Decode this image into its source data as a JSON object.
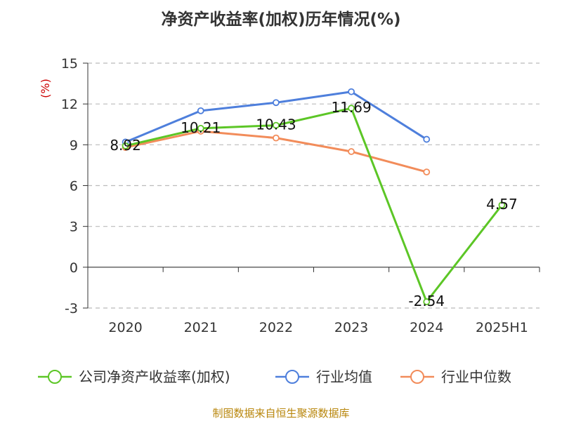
{
  "title": "净资产收益率(加权)历年情况(%)",
  "source_note": "制图数据来自恒生聚源数据库",
  "colors": {
    "company": "#5cc626",
    "industry_avg": "#4e7fdc",
    "industry_median": "#f28c5a",
    "ylabel": "#cc0000",
    "grid": "#bbbbbb",
    "axis": "#333333"
  },
  "chart_data": {
    "type": "line",
    "title": "净资产收益率(加权)历年情况(%)",
    "xlabel": "",
    "ylabel": "(%)",
    "categories": [
      "2020",
      "2021",
      "2022",
      "2023",
      "2024",
      "2025H1"
    ],
    "ylim": [
      -3,
      15
    ],
    "yticks": [
      -3,
      0,
      3,
      6,
      9,
      12,
      15
    ],
    "grid": true,
    "legend_position": "bottom",
    "series": [
      {
        "name": "公司净资产收益率(加权)",
        "color_key": "company",
        "values": [
          8.92,
          10.21,
          10.43,
          11.69,
          -2.54,
          4.57
        ],
        "labels": [
          "8.92",
          "10.21",
          "10.43",
          "11.69",
          "-2.54",
          "4.57"
        ]
      },
      {
        "name": "行业均值",
        "color_key": "industry_avg",
        "values": [
          9.2,
          11.5,
          12.1,
          12.9,
          9.4,
          null
        ]
      },
      {
        "name": "行业中位数",
        "color_key": "industry_median",
        "values": [
          8.8,
          10.0,
          9.5,
          8.5,
          7.0,
          null
        ]
      }
    ]
  }
}
